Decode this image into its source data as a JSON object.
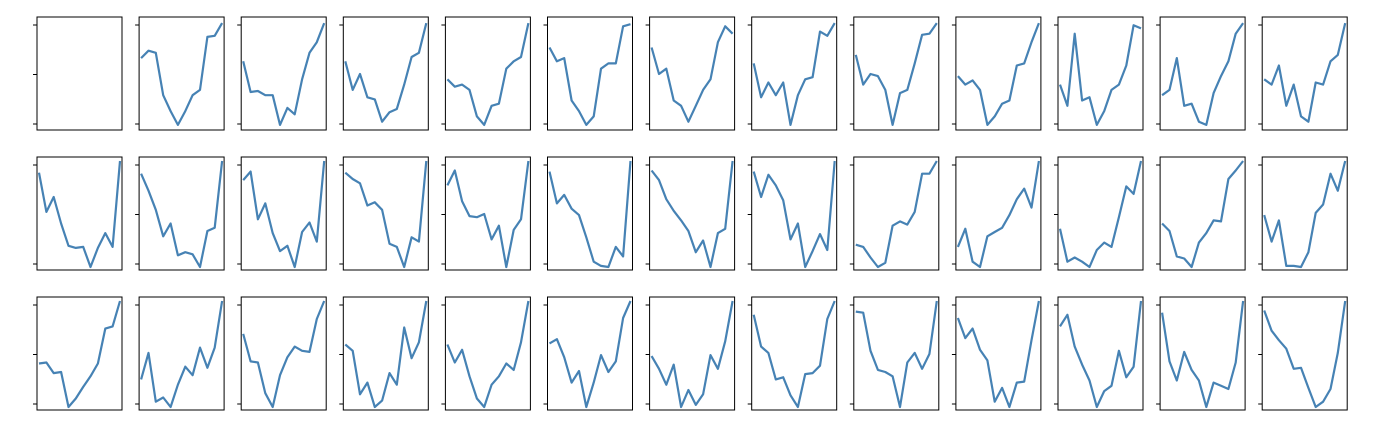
{
  "chart_data": {
    "type": "line",
    "grid_layout": {
      "rows": 3,
      "cols": 13
    },
    "line_color": "#4682b4",
    "axis_color": "#000000",
    "grid": false,
    "legend": "none",
    "tick_labels": "hidden",
    "panels": [
      {
        "values": [],
        "yticks": 3
      },
      {
        "values": [
          0.65,
          0.72,
          0.7,
          0.3,
          0.15,
          0.02,
          0.15,
          0.3,
          0.35,
          0.85,
          0.86,
          0.98
        ],
        "yticks": 2
      },
      {
        "values": [
          0.62,
          0.33,
          0.34,
          0.3,
          0.3,
          0.02,
          0.18,
          0.12,
          0.45,
          0.7,
          0.8,
          0.98
        ],
        "yticks": 2
      },
      {
        "values": [
          0.62,
          0.35,
          0.5,
          0.28,
          0.26,
          0.05,
          0.14,
          0.17,
          0.4,
          0.66,
          0.7,
          0.98
        ],
        "yticks": 2
      },
      {
        "values": [
          0.45,
          0.38,
          0.4,
          0.35,
          0.1,
          0.02,
          0.2,
          0.22,
          0.55,
          0.62,
          0.66,
          0.98
        ],
        "yticks": 2
      },
      {
        "values": [
          0.75,
          0.62,
          0.65,
          0.25,
          0.15,
          0.02,
          0.1,
          0.55,
          0.6,
          0.6,
          0.95,
          0.97
        ],
        "yticks": 2
      },
      {
        "values": [
          0.75,
          0.5,
          0.55,
          0.25,
          0.2,
          0.05,
          0.2,
          0.35,
          0.45,
          0.8,
          0.95,
          0.88
        ],
        "yticks": 2
      },
      {
        "values": [
          0.6,
          0.28,
          0.42,
          0.3,
          0.42,
          0.02,
          0.3,
          0.45,
          0.47,
          0.9,
          0.86,
          0.98
        ],
        "yticks": 2
      },
      {
        "values": [
          0.68,
          0.4,
          0.5,
          0.48,
          0.35,
          0.02,
          0.32,
          0.35,
          0.6,
          0.87,
          0.88,
          0.98
        ],
        "yticks": 2
      },
      {
        "values": [
          0.48,
          0.4,
          0.44,
          0.35,
          0.02,
          0.1,
          0.22,
          0.25,
          0.58,
          0.6,
          0.8,
          0.98
        ],
        "yticks": 2
      },
      {
        "values": [
          0.4,
          0.2,
          0.88,
          0.25,
          0.28,
          0.02,
          0.15,
          0.35,
          0.4,
          0.58,
          0.96,
          0.93
        ],
        "yticks": 2
      },
      {
        "values": [
          0.3,
          0.35,
          0.65,
          0.2,
          0.22,
          0.05,
          0.02,
          0.32,
          0.48,
          0.62,
          0.88,
          0.98
        ],
        "yticks": 2
      },
      {
        "values": [
          0.45,
          0.4,
          0.58,
          0.2,
          0.4,
          0.1,
          0.05,
          0.42,
          0.4,
          0.62,
          0.68,
          0.98
        ],
        "yticks": 2
      }
    ]
  }
}
